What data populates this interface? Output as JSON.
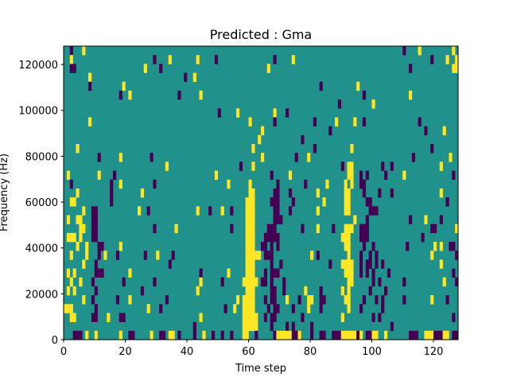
{
  "chart_data": {
    "type": "heatmap",
    "title": "Predicted : Gma",
    "xlabel": "Time step",
    "ylabel": "Frequency (Hz)",
    "xlim": [
      0,
      128
    ],
    "ylim": [
      0,
      128000
    ],
    "n_cols": 128,
    "n_rows": 33,
    "x_ticks": [
      0,
      20,
      40,
      60,
      80,
      100,
      120
    ],
    "x_tick_labels": [
      "0",
      "20",
      "40",
      "60",
      "80",
      "100",
      "120"
    ],
    "y_ticks": [
      0,
      20000,
      40000,
      60000,
      80000,
      100000,
      120000
    ],
    "y_tick_labels": [
      "0",
      "20000",
      "40000",
      "60000",
      "80000",
      "100000",
      "120000"
    ],
    "colors": {
      "background": "#21918c",
      "p": "#440154",
      "y": "#fde725"
    },
    "value_legend": {
      "p": "low",
      "background": "mid",
      "y": "high"
    },
    "cells_by_row_from_top": [
      "p2 y6 p110 y115 y126",
      "y2 p29 y34 y43 p49 p68 y74 p119 y124 y127",
      "p2-3 y26 p31 y66 p112 y126-127",
      "y8 p39 y42",
      "p8 y19 p83 y95",
      "p18 y21 p37 y44 p97 y112",
      "p89 y100",
      "p50 y56 y68 p72",
      "y8 y60 p68 p81 y88 y94 p97 p115",
      "y64 p86 p117 y123",
      "y63 p77",
      "y4 y61 p81 y93 p119",
      "p11 y18 p28 y64 p75 y79 p113 y125",
      "y33 p57 y61 p90 y92-93 p103 p106 y122",
      "y1 y11 p16 y49 p67 y73 y92-93 p96 p98 p104 y110 p126",
      "p2 p15 y18 p29 y53 y60 p69 p78 y85 y91 y93 p96-97",
      "y4 p15 y25 y60-61 p68-69 p73 y82 y91-92 p97 p102 p106 y122",
      "y2-3 p15 y59-61 p67-69 p74 y84 y91-92 p98-99 p124",
      "y6 p9-10 y24 p27 y43 p47 y51 p54 y59-61 p68-69 p73 y82 y91-92 p99-101",
      "y1 y4-5 p9-10 y59-61 p68-70 y94 p98 p112 y117 p122",
      "y5-6 p9-10 p29 y36 p54 y59-61 p66-68 p77 y82 p87 y91-93 p96-98 p119-120 y127",
      "y1-3 y5 p9-10 y59-61 p65-69 y90-92 p96-98 p116",
      "y4 y7 p11-12 y18 y59-61 p64-65 p67 p69 y91-92 p97 p100 p111 y120 y122 p125-126",
      "y2 y7 p11 y13 p17 p26 y30 p35 y59-63 p65-67 y80 p82 y92 p96 p99 p101 y119 p127",
      "y6 p10 p34 y59-61 p67 p70 p86 y90-93 p96 p98-99 p101 p103 y122",
      "y1 y3 p10-12 y21 p44 y53 y59-61 p65 p67-69 y91-93 p96 p98 p100 p105 p126",
      "y2 y5 p9 p19 p29 y44 p51 y58-62 p64-65 p67 p71 y92-93 p100 p102 p110 y123 p127",
      "y1 y3 p10 p25 y43 y59-61 p67-68 p71 y78 p83 y90 y92 p99 p104",
      "y6 p9 p17 y21 p33 y56 y58-61 p65 p67-68 y72 p76 y79-80 p83-84 y91-92 p97 p101 p103 p110 y119 p124",
      "y0-2 p10 y27 p31 p52 y55 y58-61 p66 p68-69 p74 y79 p83 y92 p96 p103",
      "y2-3 p9-10 y14 p18-19 y44 y58-62 p65 p67-68 p77 y90 p100 p102 p126",
      "p42 y58-62 p67 p72 p74 p80 p106",
      "p3-5 y7 y10 y18 p21-22 y28 p31-32 y34-35 p37 p42 y45 p48 p51 p54 y58-59 p62 p68 y69-73 p74-75 y76 p80 p83-84 p87-89 y90-94 p95 y96 p98-99 y100-101 y104 p112-114 y117-119 p120-122 y123-124 p126-127"
    ]
  }
}
